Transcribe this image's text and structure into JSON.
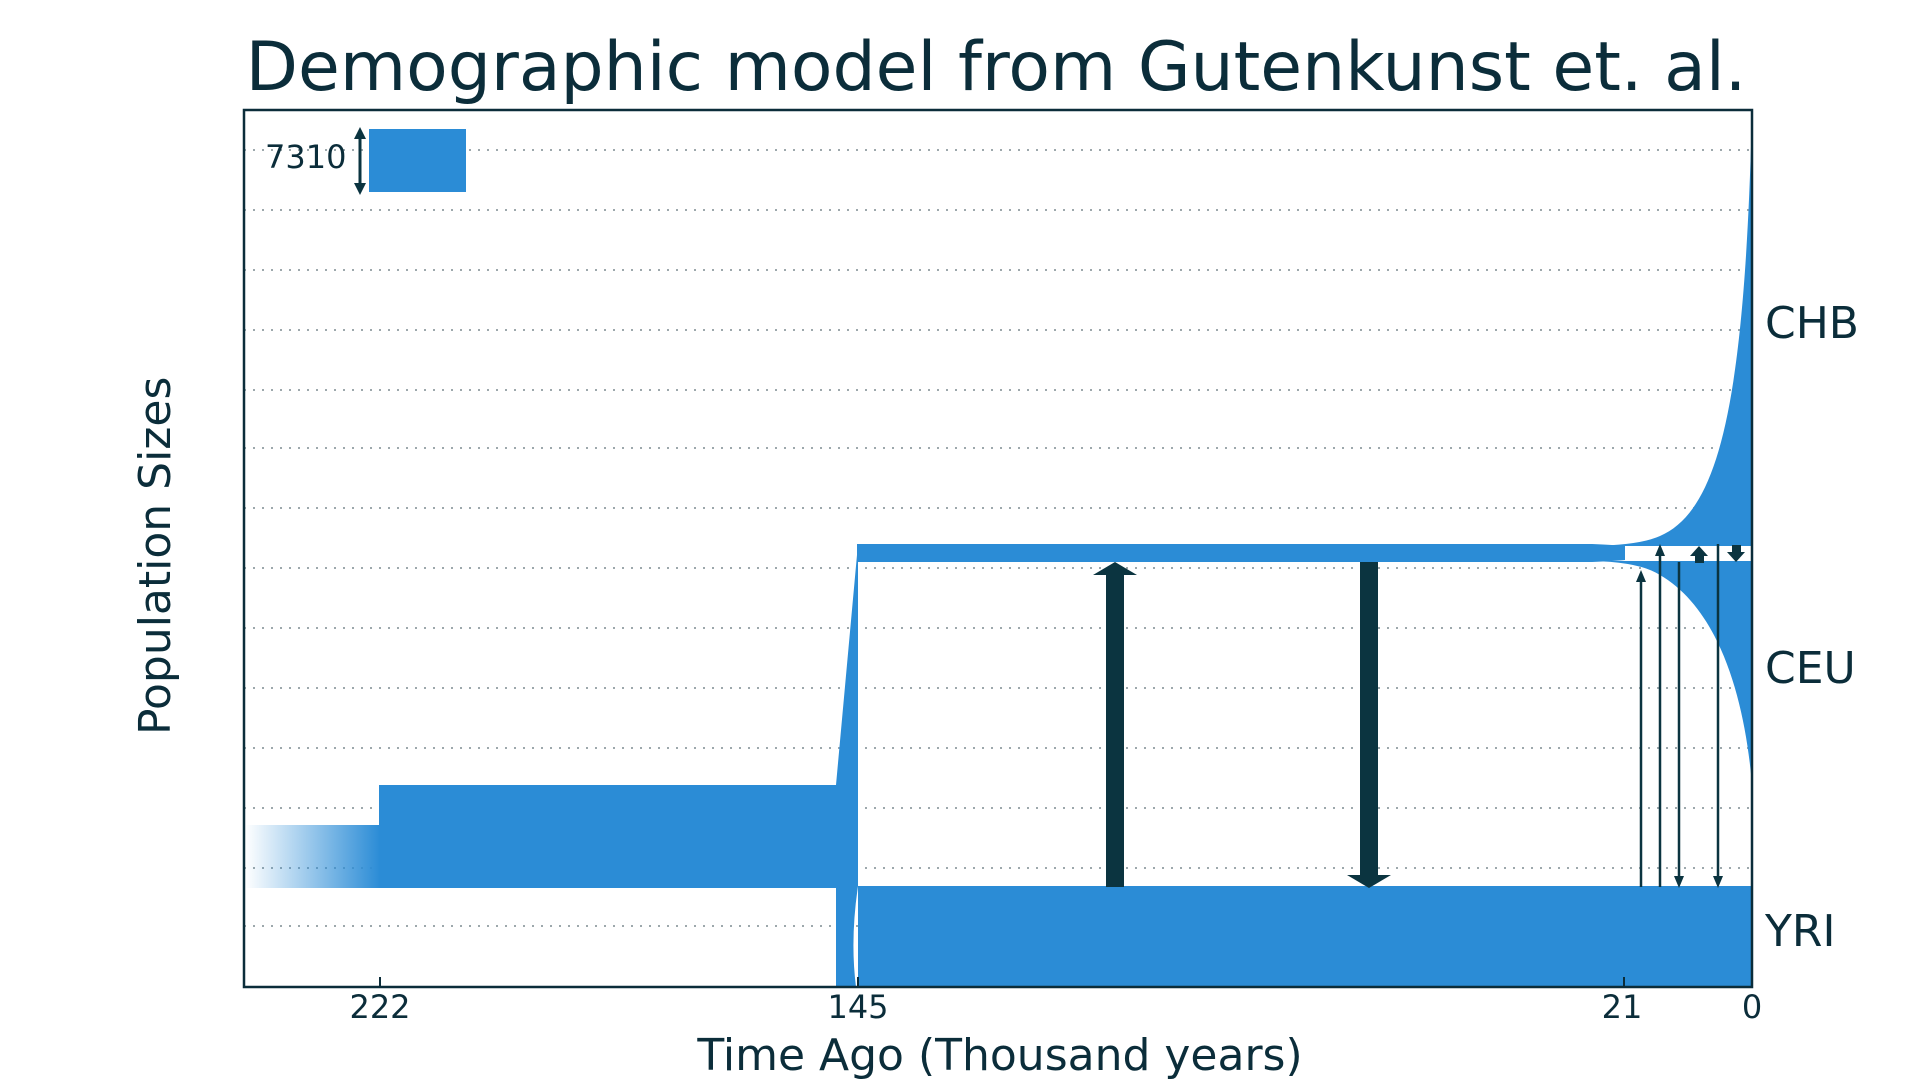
{
  "diagram": {
    "title": "Demographic model from Gutenkunst et. al.",
    "xlabel": "Time Ago (Thousand years)",
    "ylabel": "Population Sizes",
    "scale_bar": {
      "label": "7310"
    },
    "populations": [
      {
        "name": "CHB"
      },
      {
        "name": "CEU"
      },
      {
        "name": "YRI"
      }
    ],
    "time_ticks": [
      "222",
      "145",
      "21",
      "0"
    ],
    "colors": {
      "population_fill": "#2b8cd6",
      "arrow": "#0b3440",
      "text": "#0b2d3a"
    }
  }
}
